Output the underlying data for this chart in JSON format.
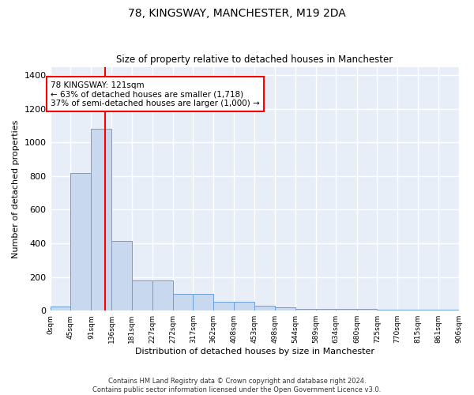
{
  "title": "78, KINGSWAY, MANCHESTER, M19 2DA",
  "subtitle": "Size of property relative to detached houses in Manchester",
  "xlabel": "Distribution of detached houses by size in Manchester",
  "ylabel": "Number of detached properties",
  "bar_color": "#c8d8ee",
  "bar_edge_color": "#6a9fd8",
  "background_color": "#e8eef8",
  "grid_color": "#ffffff",
  "bin_edges": [
    0,
    45,
    91,
    136,
    181,
    227,
    272,
    317,
    362,
    408,
    453,
    498,
    544,
    589,
    634,
    680,
    725,
    770,
    815,
    861,
    906
  ],
  "bar_heights": [
    25,
    820,
    1080,
    415,
    180,
    180,
    100,
    100,
    55,
    55,
    30,
    20,
    10,
    10,
    10,
    10,
    5,
    5,
    5,
    5
  ],
  "red_line_x": 121,
  "ylim": [
    0,
    1450
  ],
  "yticks": [
    0,
    200,
    400,
    600,
    800,
    1000,
    1200,
    1400
  ],
  "annotation_text": "78 KINGSWAY: 121sqm\n← 63% of detached houses are smaller (1,718)\n37% of semi-detached houses are larger (1,000) →",
  "footer_text": "Contains HM Land Registry data © Crown copyright and database right 2024.\nContains public sector information licensed under the Open Government Licence v3.0.",
  "tick_labels": [
    "0sqm",
    "45sqm",
    "91sqm",
    "136sqm",
    "181sqm",
    "227sqm",
    "272sqm",
    "317sqm",
    "362sqm",
    "408sqm",
    "453sqm",
    "498sqm",
    "544sqm",
    "589sqm",
    "634sqm",
    "680sqm",
    "725sqm",
    "770sqm",
    "815sqm",
    "861sqm",
    "906sqm"
  ],
  "title_fontsize": 10,
  "subtitle_fontsize": 8.5,
  "ylabel_fontsize": 8,
  "xlabel_fontsize": 8,
  "tick_fontsize": 6.5,
  "ytick_fontsize": 8
}
